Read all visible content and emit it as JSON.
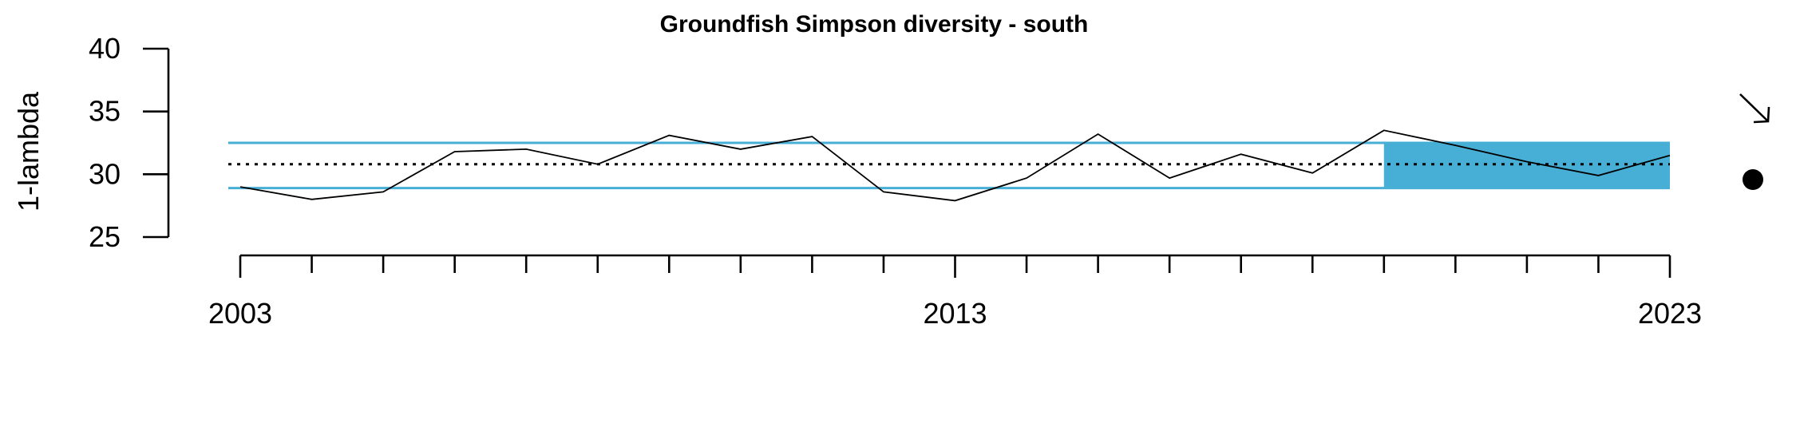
{
  "chart_data": {
    "type": "line",
    "title": "Groundfish Simpson diversity - south",
    "xlabel": "",
    "ylabel": "1-lambda",
    "xlim": [
      2003,
      2023
    ],
    "ylim": [
      25,
      40
    ],
    "x_ticks_major": [
      2003,
      2013,
      2023
    ],
    "x_tick_labels": [
      "2003",
      "2013",
      "2023"
    ],
    "y_ticks": [
      25,
      30,
      35,
      40
    ],
    "y_tick_labels": [
      "25",
      "30",
      "35",
      "40"
    ],
    "series": [
      {
        "x": [
          2003,
          2004,
          2005,
          2006,
          2007,
          2008,
          2009,
          2010,
          2011,
          2012,
          2013,
          2014,
          2015,
          2016,
          2017,
          2018,
          2019,
          2020,
          2021,
          2022,
          2023
        ],
        "values": [
          29.0,
          28.0,
          28.6,
          31.8,
          32.0,
          30.8,
          33.1,
          32.0,
          33.0,
          28.6,
          27.9,
          29.7,
          33.2,
          29.7,
          31.6,
          30.1,
          33.5,
          32.3,
          31.0,
          29.9,
          31.5
        ]
      }
    ],
    "mean": 30.8,
    "upper_band": 32.5,
    "lower_band": 28.9,
    "shaded_region": {
      "x_start": 2019,
      "x_end": 2023,
      "y_low": 28.9,
      "y_high": 32.5
    },
    "trend_indicator": "decreasing-arrow",
    "status_indicator": "within-band-dot",
    "colors": {
      "band": "#47aed6",
      "line": "#000000",
      "mean": "#000000"
    },
    "grid": false,
    "legend": "none"
  }
}
